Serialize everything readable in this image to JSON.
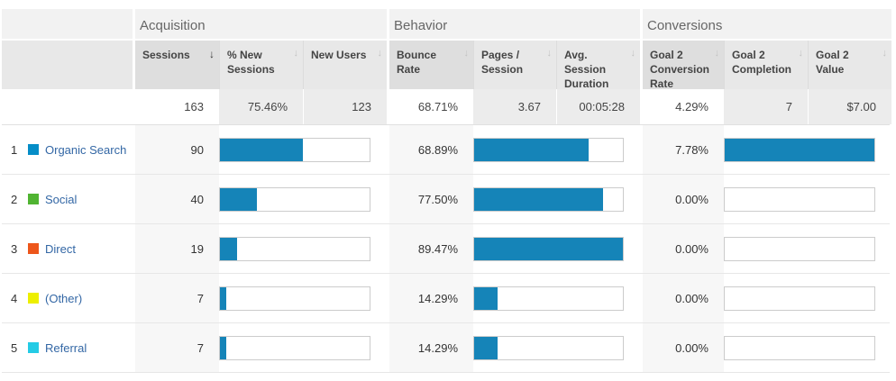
{
  "colors": {
    "bar_fill": "#1584b8",
    "link": "#3367a5"
  },
  "icons": {
    "sort_desc_active": "↓",
    "sort_hint": "↓"
  },
  "table": {
    "groups": [
      "Acquisition",
      "Behavior",
      "Conversions"
    ],
    "columns": [
      "Sessions",
      "% New Sessions",
      "New Users",
      "Bounce Rate",
      "Pages / Session",
      "Avg. Session Duration",
      "Goal 2 Conversion Rate",
      "Goal 2 Completion",
      "Goal 2 Value"
    ],
    "summary": {
      "sessions": "163",
      "new_sessions_pct": "75.46%",
      "new_users": "123",
      "bounce_rate": "68.71%",
      "pages_per_session": "3.67",
      "avg_session_duration": "00:05:28",
      "goal_conversion_rate": "4.29%",
      "goal_completions": "7",
      "goal_value": "$7.00"
    },
    "rows": [
      {
        "rank": "1",
        "channel": "Organic Search",
        "color": "#058dc7",
        "sessions": "90",
        "bounce_rate": "68.89%",
        "goal_rate": "7.78%",
        "bars": {
          "sessions": 55.2,
          "bounce": 77.0,
          "goal": 100
        }
      },
      {
        "rank": "2",
        "channel": "Social",
        "color": "#50b432",
        "sessions": "40",
        "bounce_rate": "77.50%",
        "goal_rate": "0.00%",
        "bars": {
          "sessions": 24.5,
          "bounce": 86.6,
          "goal": 0
        }
      },
      {
        "rank": "3",
        "channel": "Direct",
        "color": "#ed561b",
        "sessions": "19",
        "bounce_rate": "89.47%",
        "goal_rate": "0.00%",
        "bars": {
          "sessions": 11.7,
          "bounce": 100,
          "goal": 0
        }
      },
      {
        "rank": "4",
        "channel": "(Other)",
        "color": "#edef00",
        "sessions": "7",
        "bounce_rate": "14.29%",
        "goal_rate": "0.00%",
        "bars": {
          "sessions": 4.3,
          "bounce": 16.0,
          "goal": 0
        }
      },
      {
        "rank": "5",
        "channel": "Referral",
        "color": "#24cbe5",
        "sessions": "7",
        "bounce_rate": "14.29%",
        "goal_rate": "0.00%",
        "bars": {
          "sessions": 4.3,
          "bounce": 16.0,
          "goal": 0
        }
      }
    ]
  }
}
